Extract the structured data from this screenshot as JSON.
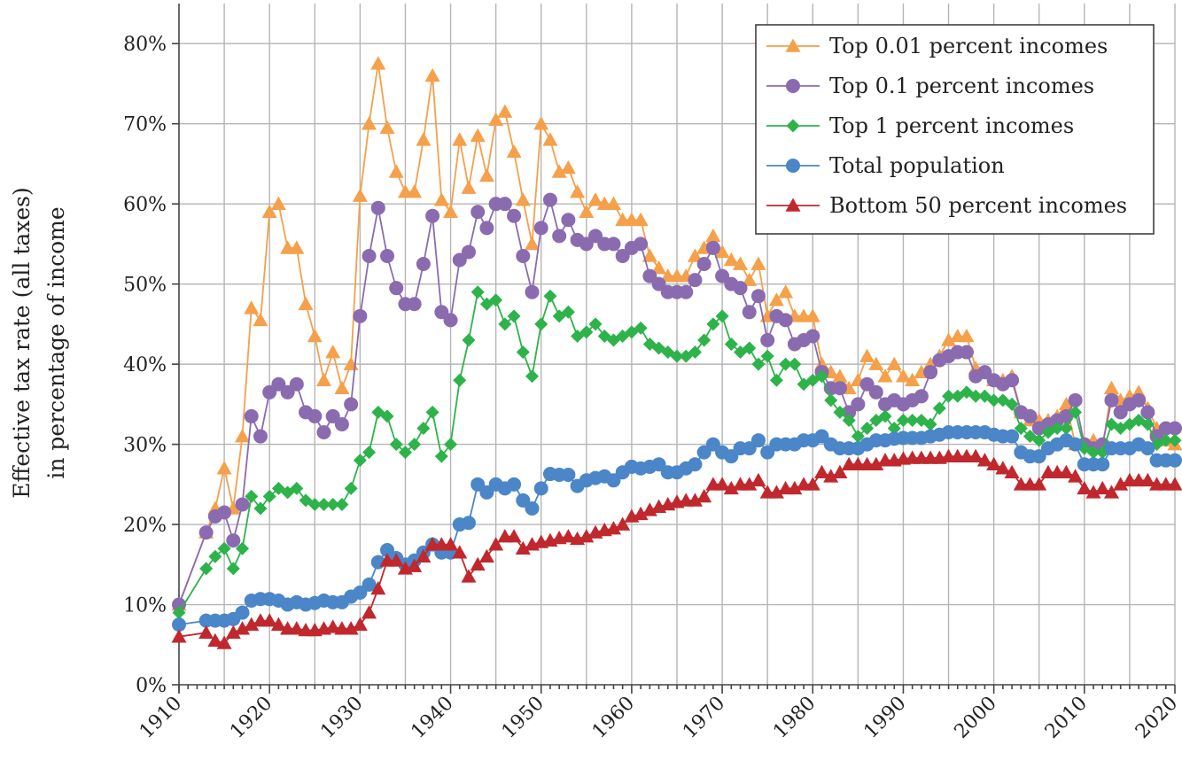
{
  "chart_data": {
    "type": "line",
    "ylabel": [
      "Effective tax rate  (all taxes)",
      "in percentage of income"
    ],
    "xlabel": "",
    "xlim": [
      1910,
      2020
    ],
    "ylim": [
      0,
      0.85
    ],
    "yticks": [
      0,
      0.1,
      0.2,
      0.3,
      0.4,
      0.5,
      0.6,
      0.7,
      0.8
    ],
    "ytick_labels": [
      "0%",
      "10%",
      "20%",
      "30%",
      "40%",
      "50%",
      "60%",
      "70%",
      "80%"
    ],
    "xticks": [
      1910,
      1920,
      1930,
      1940,
      1950,
      1960,
      1970,
      1980,
      1990,
      2000,
      2010,
      2020
    ],
    "xtick_labels": [
      "1910",
      "1920",
      "1930",
      "1940",
      "1950",
      "1960",
      "1970",
      "1980",
      "1990",
      "2000",
      "2010",
      "2020"
    ],
    "grid": true,
    "legend_position": "top-right",
    "series": [
      {
        "name": "Top 0.01 percent incomes",
        "color": "#f5a04a",
        "marker": "triangle-up",
        "x": [
          1910,
          1913,
          1914,
          1915,
          1916,
          1917,
          1918,
          1919,
          1920,
          1921,
          1922,
          1923,
          1924,
          1925,
          1926,
          1927,
          1928,
          1929,
          1930,
          1931,
          1932,
          1933,
          1934,
          1935,
          1936,
          1937,
          1938,
          1939,
          1940,
          1941,
          1942,
          1943,
          1944,
          1945,
          1946,
          1947,
          1948,
          1949,
          1950,
          1951,
          1952,
          1953,
          1954,
          1955,
          1956,
          1957,
          1958,
          1959,
          1960,
          1961,
          1962,
          1963,
          1964,
          1965,
          1966,
          1967,
          1968,
          1969,
          1970,
          1971,
          1972,
          1973,
          1974,
          1975,
          1976,
          1977,
          1978,
          1979,
          1980,
          1981,
          1982,
          1983,
          1984,
          1985,
          1986,
          1987,
          1988,
          1989,
          1990,
          1991,
          1992,
          1993,
          1994,
          1995,
          1996,
          1997,
          1998,
          1999,
          2000,
          2001,
          2002,
          2003,
          2004,
          2005,
          2006,
          2007,
          2008,
          2009,
          2010,
          2011,
          2012,
          2013,
          2014,
          2015,
          2016,
          2017,
          2018,
          2019,
          2020
        ],
        "y": [
          0.1,
          0.19,
          0.22,
          0.27,
          0.22,
          0.31,
          0.47,
          0.455,
          0.59,
          0.6,
          0.545,
          0.545,
          0.475,
          0.435,
          0.38,
          0.415,
          0.37,
          0.4,
          0.61,
          0.7,
          0.775,
          0.695,
          0.64,
          0.615,
          0.615,
          0.68,
          0.76,
          0.605,
          0.59,
          0.68,
          0.62,
          0.685,
          0.635,
          0.705,
          0.715,
          0.665,
          0.605,
          0.55,
          0.7,
          0.68,
          0.64,
          0.645,
          0.615,
          0.59,
          0.605,
          0.6,
          0.6,
          0.58,
          0.58,
          0.58,
          0.535,
          0.52,
          0.51,
          0.51,
          0.51,
          0.535,
          0.545,
          0.56,
          0.54,
          0.53,
          0.525,
          0.505,
          0.525,
          0.46,
          0.48,
          0.49,
          0.46,
          0.46,
          0.46,
          0.4,
          0.39,
          0.385,
          0.37,
          0.38,
          0.41,
          0.4,
          0.385,
          0.4,
          0.385,
          0.38,
          0.39,
          0.4,
          0.41,
          0.43,
          0.435,
          0.435,
          0.395,
          0.39,
          0.38,
          0.38,
          0.385,
          0.34,
          0.33,
          0.33,
          0.33,
          0.335,
          0.35,
          0.3,
          0.3,
          0.305,
          0.295,
          0.37,
          0.355,
          0.36,
          0.365,
          0.345,
          0.32,
          0.305,
          0.3
        ]
      },
      {
        "name": "Top 0.1 percent incomes",
        "color": "#8a6bb0",
        "marker": "circle",
        "x": [
          1910,
          1913,
          1914,
          1915,
          1916,
          1917,
          1918,
          1919,
          1920,
          1921,
          1922,
          1923,
          1924,
          1925,
          1926,
          1927,
          1928,
          1929,
          1930,
          1931,
          1932,
          1933,
          1934,
          1935,
          1936,
          1937,
          1938,
          1939,
          1940,
          1941,
          1942,
          1943,
          1944,
          1945,
          1946,
          1947,
          1948,
          1949,
          1950,
          1951,
          1952,
          1953,
          1954,
          1955,
          1956,
          1957,
          1958,
          1959,
          1960,
          1961,
          1962,
          1963,
          1964,
          1965,
          1966,
          1967,
          1968,
          1969,
          1970,
          1971,
          1972,
          1973,
          1974,
          1975,
          1976,
          1977,
          1978,
          1979,
          1980,
          1981,
          1982,
          1983,
          1984,
          1985,
          1986,
          1987,
          1988,
          1989,
          1990,
          1991,
          1992,
          1993,
          1994,
          1995,
          1996,
          1997,
          1998,
          1999,
          2000,
          2001,
          2002,
          2003,
          2004,
          2005,
          2006,
          2007,
          2008,
          2009,
          2010,
          2011,
          2012,
          2013,
          2014,
          2015,
          2016,
          2017,
          2018,
          2019,
          2020
        ],
        "y": [
          0.1,
          0.19,
          0.21,
          0.215,
          0.18,
          0.225,
          0.335,
          0.31,
          0.365,
          0.375,
          0.365,
          0.375,
          0.34,
          0.335,
          0.315,
          0.335,
          0.325,
          0.35,
          0.46,
          0.535,
          0.595,
          0.535,
          0.495,
          0.475,
          0.475,
          0.525,
          0.585,
          0.465,
          0.455,
          0.53,
          0.54,
          0.59,
          0.57,
          0.6,
          0.6,
          0.585,
          0.535,
          0.49,
          0.57,
          0.605,
          0.56,
          0.58,
          0.555,
          0.55,
          0.56,
          0.55,
          0.55,
          0.535,
          0.545,
          0.55,
          0.51,
          0.5,
          0.49,
          0.49,
          0.49,
          0.505,
          0.525,
          0.545,
          0.51,
          0.5,
          0.495,
          0.465,
          0.485,
          0.43,
          0.46,
          0.455,
          0.425,
          0.43,
          0.435,
          0.39,
          0.37,
          0.37,
          0.34,
          0.35,
          0.375,
          0.365,
          0.35,
          0.355,
          0.35,
          0.355,
          0.36,
          0.39,
          0.405,
          0.41,
          0.415,
          0.415,
          0.385,
          0.39,
          0.38,
          0.375,
          0.38,
          0.34,
          0.335,
          0.32,
          0.325,
          0.33,
          0.335,
          0.355,
          0.3,
          0.295,
          0.3,
          0.355,
          0.34,
          0.35,
          0.355,
          0.34,
          0.31,
          0.32,
          0.32
        ]
      },
      {
        "name": "Top 1  percent incomes",
        "color": "#2db34a",
        "marker": "diamond",
        "x": [
          1910,
          1913,
          1914,
          1915,
          1916,
          1917,
          1918,
          1919,
          1920,
          1921,
          1922,
          1923,
          1924,
          1925,
          1926,
          1927,
          1928,
          1929,
          1930,
          1931,
          1932,
          1933,
          1934,
          1935,
          1936,
          1937,
          1938,
          1939,
          1940,
          1941,
          1942,
          1943,
          1944,
          1945,
          1946,
          1947,
          1948,
          1949,
          1950,
          1951,
          1952,
          1953,
          1954,
          1955,
          1956,
          1957,
          1958,
          1959,
          1960,
          1961,
          1962,
          1963,
          1964,
          1965,
          1966,
          1967,
          1968,
          1969,
          1970,
          1971,
          1972,
          1973,
          1974,
          1975,
          1976,
          1977,
          1978,
          1979,
          1980,
          1981,
          1982,
          1983,
          1984,
          1985,
          1986,
          1987,
          1988,
          1989,
          1990,
          1991,
          1992,
          1993,
          1994,
          1995,
          1996,
          1997,
          1998,
          1999,
          2000,
          2001,
          2002,
          2003,
          2004,
          2005,
          2006,
          2007,
          2008,
          2009,
          2010,
          2011,
          2012,
          2013,
          2014,
          2015,
          2016,
          2017,
          2018,
          2019,
          2020
        ],
        "y": [
          0.09,
          0.145,
          0.16,
          0.17,
          0.145,
          0.17,
          0.235,
          0.22,
          0.235,
          0.245,
          0.24,
          0.245,
          0.23,
          0.225,
          0.225,
          0.225,
          0.225,
          0.245,
          0.28,
          0.29,
          0.34,
          0.335,
          0.3,
          0.29,
          0.3,
          0.32,
          0.34,
          0.285,
          0.3,
          0.38,
          0.43,
          0.49,
          0.475,
          0.48,
          0.45,
          0.46,
          0.415,
          0.385,
          0.45,
          0.485,
          0.46,
          0.465,
          0.435,
          0.44,
          0.45,
          0.435,
          0.43,
          0.435,
          0.44,
          0.445,
          0.425,
          0.42,
          0.415,
          0.41,
          0.41,
          0.415,
          0.43,
          0.45,
          0.46,
          0.425,
          0.415,
          0.42,
          0.4,
          0.41,
          0.38,
          0.4,
          0.4,
          0.375,
          0.38,
          0.385,
          0.355,
          0.34,
          0.33,
          0.31,
          0.32,
          0.33,
          0.335,
          0.32,
          0.33,
          0.33,
          0.33,
          0.325,
          0.345,
          0.36,
          0.36,
          0.365,
          0.36,
          0.36,
          0.355,
          0.355,
          0.35,
          0.32,
          0.31,
          0.305,
          0.315,
          0.32,
          0.32,
          0.34,
          0.295,
          0.29,
          0.29,
          0.325,
          0.32,
          0.325,
          0.33,
          0.325,
          0.3,
          0.305,
          0.305
        ]
      },
      {
        "name": "Total population",
        "color": "#4a86c8",
        "marker": "circle",
        "x": [
          1910,
          1913,
          1914,
          1915,
          1916,
          1917,
          1918,
          1919,
          1920,
          1921,
          1922,
          1923,
          1924,
          1925,
          1926,
          1927,
          1928,
          1929,
          1930,
          1931,
          1932,
          1933,
          1934,
          1935,
          1936,
          1937,
          1938,
          1939,
          1940,
          1941,
          1942,
          1943,
          1944,
          1945,
          1946,
          1947,
          1948,
          1949,
          1950,
          1951,
          1952,
          1953,
          1954,
          1955,
          1956,
          1957,
          1958,
          1959,
          1960,
          1961,
          1962,
          1963,
          1964,
          1965,
          1966,
          1967,
          1968,
          1969,
          1970,
          1971,
          1972,
          1973,
          1974,
          1975,
          1976,
          1977,
          1978,
          1979,
          1980,
          1981,
          1982,
          1983,
          1984,
          1985,
          1986,
          1987,
          1988,
          1989,
          1990,
          1991,
          1992,
          1993,
          1994,
          1995,
          1996,
          1997,
          1998,
          1999,
          2000,
          2001,
          2002,
          2003,
          2004,
          2005,
          2006,
          2007,
          2008,
          2009,
          2010,
          2011,
          2012,
          2013,
          2014,
          2015,
          2016,
          2017,
          2018,
          2019,
          2020
        ],
        "y": [
          0.075,
          0.08,
          0.08,
          0.08,
          0.082,
          0.09,
          0.105,
          0.107,
          0.107,
          0.105,
          0.1,
          0.103,
          0.1,
          0.102,
          0.105,
          0.103,
          0.103,
          0.11,
          0.115,
          0.125,
          0.153,
          0.168,
          0.158,
          0.15,
          0.155,
          0.165,
          0.175,
          0.165,
          0.165,
          0.2,
          0.202,
          0.25,
          0.24,
          0.25,
          0.245,
          0.25,
          0.23,
          0.22,
          0.245,
          0.263,
          0.262,
          0.262,
          0.248,
          0.255,
          0.258,
          0.26,
          0.255,
          0.265,
          0.272,
          0.27,
          0.272,
          0.275,
          0.265,
          0.265,
          0.27,
          0.275,
          0.29,
          0.3,
          0.29,
          0.285,
          0.295,
          0.295,
          0.305,
          0.29,
          0.3,
          0.3,
          0.3,
          0.305,
          0.305,
          0.31,
          0.3,
          0.295,
          0.295,
          0.295,
          0.3,
          0.305,
          0.305,
          0.307,
          0.308,
          0.308,
          0.308,
          0.31,
          0.312,
          0.315,
          0.315,
          0.315,
          0.315,
          0.315,
          0.312,
          0.31,
          0.31,
          0.29,
          0.285,
          0.285,
          0.295,
          0.3,
          0.305,
          0.3,
          0.275,
          0.275,
          0.275,
          0.295,
          0.295,
          0.295,
          0.3,
          0.295,
          0.28,
          0.28,
          0.28
        ]
      },
      {
        "name": "Bottom 50 percent incomes",
        "color": "#c0282d",
        "marker": "triangle-up",
        "x": [
          1910,
          1913,
          1914,
          1915,
          1916,
          1917,
          1918,
          1919,
          1920,
          1921,
          1922,
          1923,
          1924,
          1925,
          1926,
          1927,
          1928,
          1929,
          1930,
          1931,
          1932,
          1933,
          1934,
          1935,
          1936,
          1937,
          1938,
          1939,
          1940,
          1941,
          1942,
          1943,
          1944,
          1945,
          1946,
          1947,
          1948,
          1949,
          1950,
          1951,
          1952,
          1953,
          1954,
          1955,
          1956,
          1957,
          1958,
          1959,
          1960,
          1961,
          1962,
          1963,
          1964,
          1965,
          1966,
          1967,
          1968,
          1969,
          1970,
          1971,
          1972,
          1973,
          1974,
          1975,
          1976,
          1977,
          1978,
          1979,
          1980,
          1981,
          1982,
          1983,
          1984,
          1985,
          1986,
          1987,
          1988,
          1989,
          1990,
          1991,
          1992,
          1993,
          1994,
          1995,
          1996,
          1997,
          1998,
          1999,
          2000,
          2001,
          2002,
          2003,
          2004,
          2005,
          2006,
          2007,
          2008,
          2009,
          2010,
          2011,
          2012,
          2013,
          2014,
          2015,
          2016,
          2017,
          2018,
          2019,
          2020
        ],
        "y": [
          0.06,
          0.065,
          0.055,
          0.052,
          0.065,
          0.07,
          0.075,
          0.08,
          0.08,
          0.075,
          0.07,
          0.07,
          0.068,
          0.068,
          0.07,
          0.072,
          0.07,
          0.07,
          0.075,
          0.09,
          0.12,
          0.155,
          0.155,
          0.145,
          0.148,
          0.16,
          0.175,
          0.175,
          0.175,
          0.165,
          0.135,
          0.15,
          0.16,
          0.175,
          0.185,
          0.185,
          0.17,
          0.175,
          0.178,
          0.18,
          0.183,
          0.185,
          0.182,
          0.185,
          0.19,
          0.193,
          0.195,
          0.2,
          0.21,
          0.213,
          0.218,
          0.222,
          0.225,
          0.228,
          0.23,
          0.23,
          0.235,
          0.25,
          0.25,
          0.245,
          0.25,
          0.25,
          0.255,
          0.24,
          0.24,
          0.245,
          0.245,
          0.25,
          0.25,
          0.265,
          0.26,
          0.265,
          0.275,
          0.275,
          0.275,
          0.275,
          0.28,
          0.28,
          0.282,
          0.283,
          0.283,
          0.283,
          0.283,
          0.285,
          0.285,
          0.285,
          0.285,
          0.28,
          0.275,
          0.27,
          0.265,
          0.25,
          0.25,
          0.25,
          0.265,
          0.265,
          0.265,
          0.26,
          0.245,
          0.24,
          0.245,
          0.24,
          0.25,
          0.255,
          0.255,
          0.255,
          0.25,
          0.25,
          0.25
        ]
      }
    ]
  }
}
